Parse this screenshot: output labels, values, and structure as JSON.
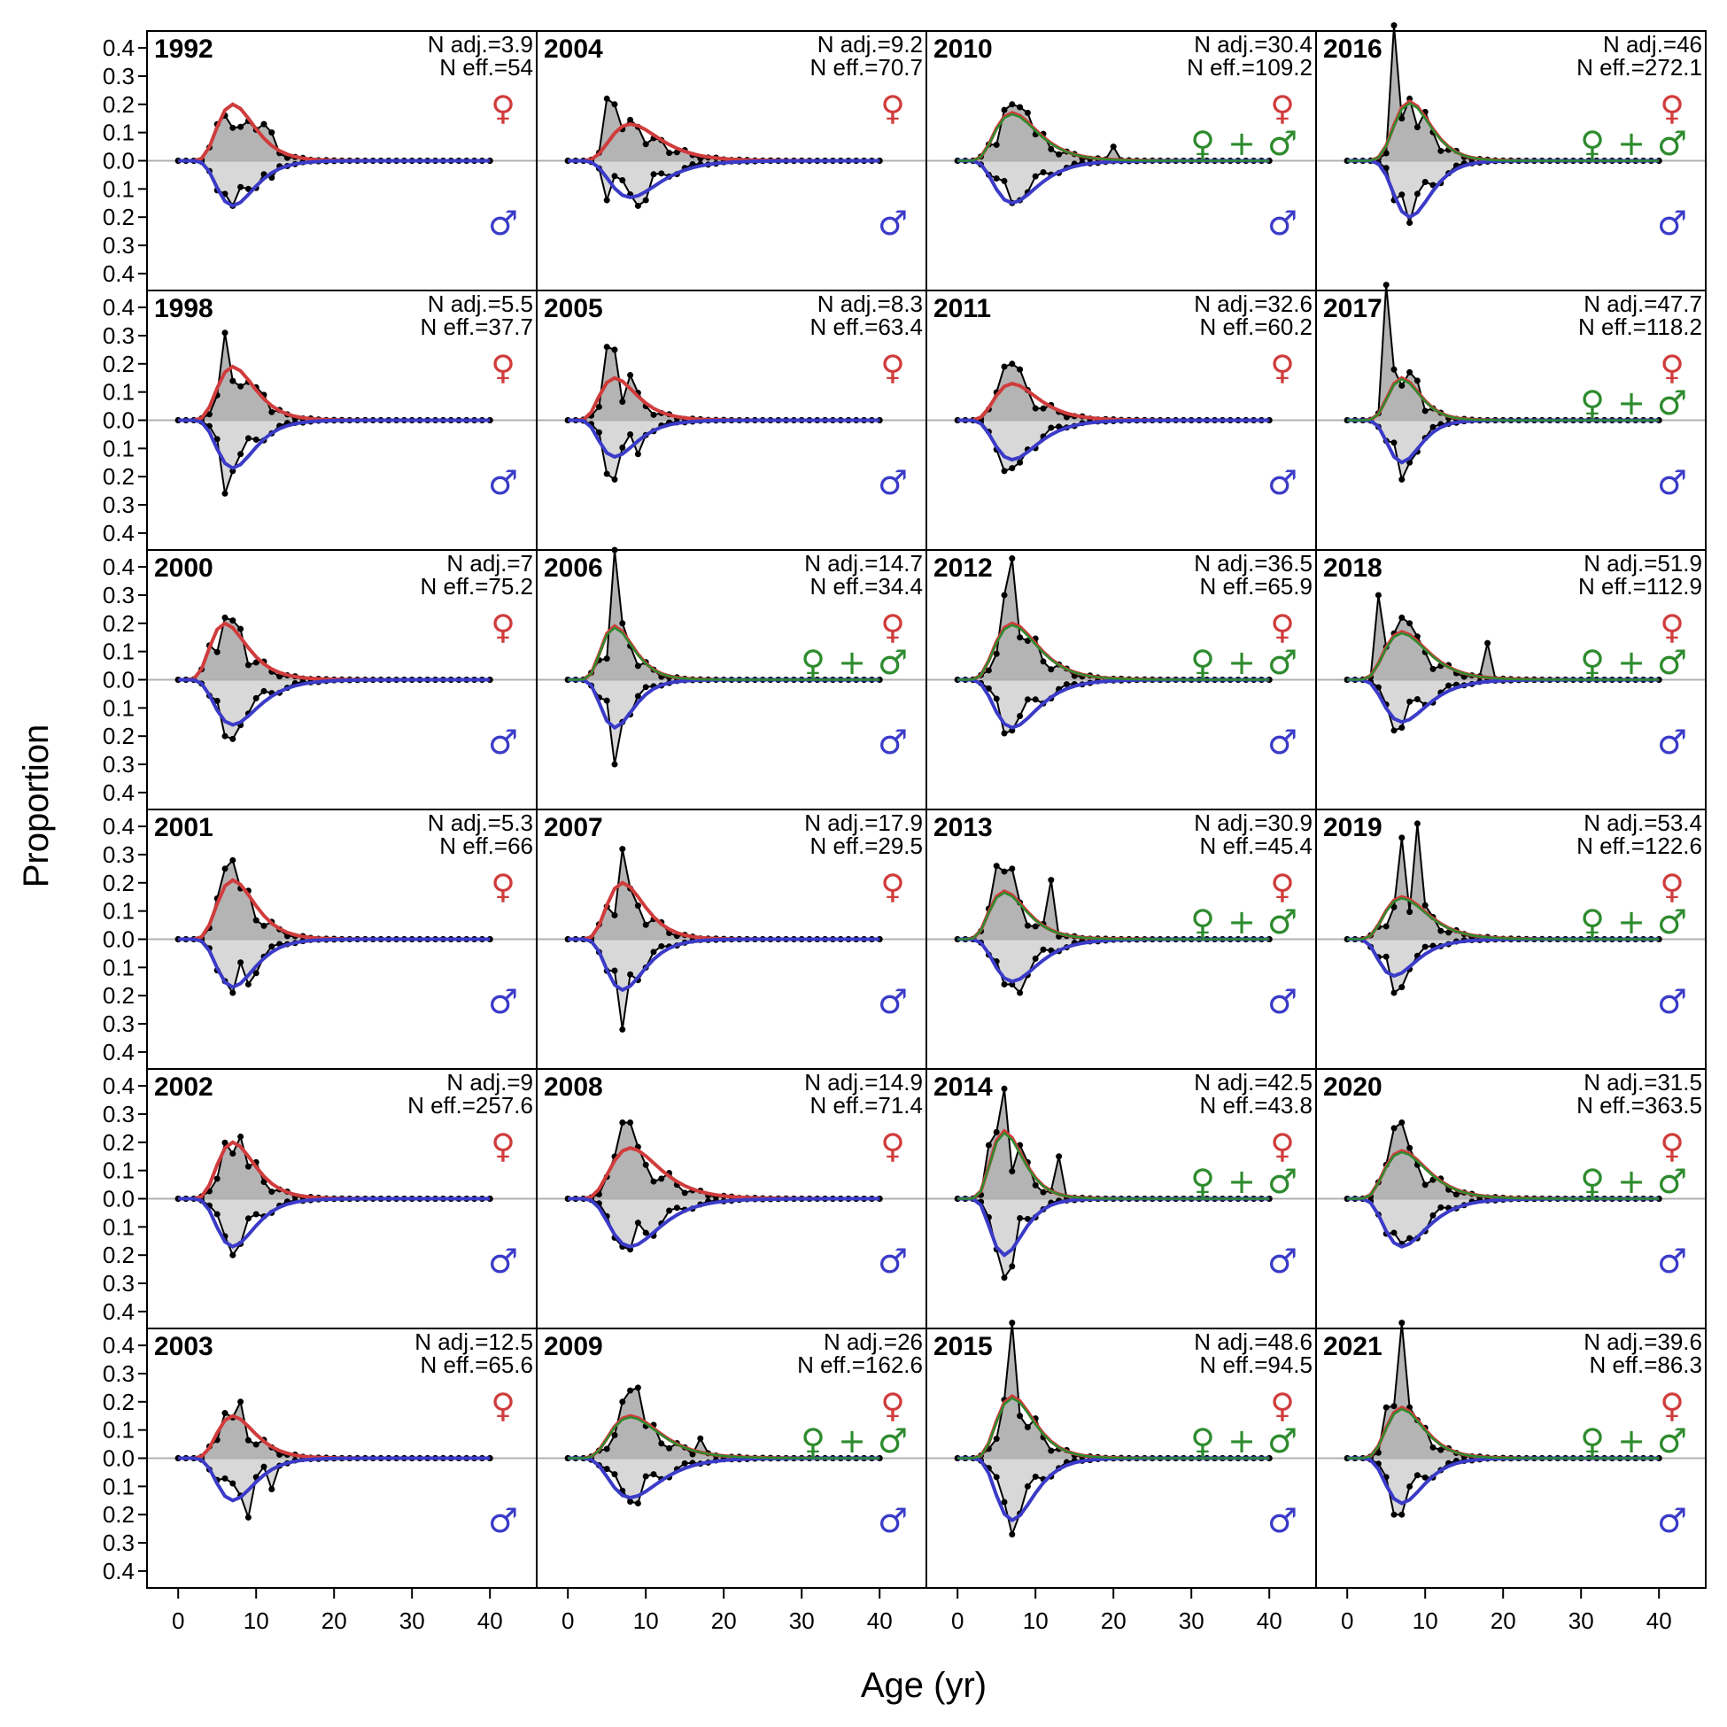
{
  "chart_data": {
    "type": "area",
    "xlabel": "Age (yr)",
    "ylabel": "Proportion",
    "xlim": [
      -4,
      46
    ],
    "ylim": [
      -0.46,
      0.46
    ],
    "x_ticks": [
      "0",
      "10",
      "20",
      "30",
      "40"
    ],
    "y_ticks": [
      "0.4",
      "0.3",
      "0.2",
      "0.1",
      "0.0",
      "0.1",
      "0.2",
      "0.3",
      "0.4"
    ],
    "symbols": {
      "female": "♀",
      "male": "♂",
      "combined_plus": "+"
    },
    "colors": {
      "female_fit": "#d03c3c",
      "male_fit": "#3b3bc8",
      "combined_fit": "#2e8b2e",
      "obs_fill_female": "#b4b4b4",
      "obs_fill_male": "#d8d8d8",
      "obs_line": "#000000",
      "zero_line": "#b0b0b0"
    },
    "layout_note_cols": 4,
    "panels": [
      {
        "year": "1992",
        "n_adj": "N adj.=3.9",
        "n_eff": "N eff.=54",
        "f_mode": 7,
        "f_peak": 0.2,
        "m_mode": 7,
        "m_peak": 0.16,
        "spread": 3.5,
        "spikes": [
          [
            6,
            0.16
          ],
          [
            8,
            0.12
          ],
          [
            10,
            0.11
          ],
          [
            11,
            0.13
          ],
          [
            12,
            0.1
          ]
        ],
        "mspikes": [
          [
            7,
            0.16
          ],
          [
            9,
            0.1
          ],
          [
            12,
            0.06
          ]
        ],
        "combined": false
      },
      {
        "year": "2004",
        "n_adj": "N adj.=9.2",
        "n_eff": "N eff.=70.7",
        "f_mode": 8,
        "f_peak": 0.13,
        "m_mode": 8,
        "m_peak": 0.13,
        "spread": 4,
        "spikes": [
          [
            5,
            0.22
          ],
          [
            6,
            0.2
          ],
          [
            9,
            0.12
          ],
          [
            11,
            0.08
          ]
        ],
        "mspikes": [
          [
            5,
            0.14
          ],
          [
            9,
            0.16
          ],
          [
            10,
            0.14
          ]
        ],
        "combined": false
      },
      {
        "year": "2010",
        "n_adj": "N adj.=30.4",
        "n_eff": "N eff.=109.2",
        "f_mode": 7,
        "f_peak": 0.17,
        "m_mode": 7,
        "m_peak": 0.15,
        "spread": 4,
        "spikes": [
          [
            6,
            0.18
          ],
          [
            7,
            0.2
          ],
          [
            8,
            0.19
          ],
          [
            9,
            0.17
          ],
          [
            20,
            0.05
          ]
        ],
        "mspikes": [
          [
            7,
            0.15
          ],
          [
            8,
            0.14
          ]
        ],
        "combined": true
      },
      {
        "year": "2016",
        "n_adj": "N adj.=46",
        "n_eff": "N eff.=272.1",
        "f_mode": 8,
        "f_peak": 0.21,
        "m_mode": 8,
        "m_peak": 0.2,
        "spread": 3,
        "spikes": [
          [
            6,
            0.48
          ],
          [
            7,
            0.15
          ],
          [
            8,
            0.22
          ]
        ],
        "mspikes": [
          [
            6,
            0.14
          ],
          [
            7,
            0.12
          ],
          [
            8,
            0.22
          ]
        ],
        "combined": true
      },
      {
        "year": "1998",
        "n_adj": "N adj.=5.5",
        "n_eff": "N eff.=37.7",
        "f_mode": 7,
        "f_peak": 0.19,
        "m_mode": 7,
        "m_peak": 0.17,
        "spread": 3.5,
        "spikes": [
          [
            6,
            0.31
          ],
          [
            8,
            0.12
          ],
          [
            11,
            0.09
          ]
        ],
        "mspikes": [
          [
            6,
            0.26
          ],
          [
            8,
            0.12
          ]
        ],
        "combined": false
      },
      {
        "year": "2005",
        "n_adj": "N adj.=8.3",
        "n_eff": "N eff.=63.4",
        "f_mode": 6,
        "f_peak": 0.15,
        "m_mode": 6,
        "m_peak": 0.13,
        "spread": 4,
        "spikes": [
          [
            5,
            0.26
          ],
          [
            6,
            0.25
          ],
          [
            8,
            0.16
          ],
          [
            10,
            0.05
          ]
        ],
        "mspikes": [
          [
            5,
            0.19
          ],
          [
            6,
            0.21
          ],
          [
            9,
            0.12
          ]
        ],
        "combined": false
      },
      {
        "year": "2011",
        "n_adj": "N adj.=32.6",
        "n_eff": "N eff.=60.2",
        "f_mode": 7,
        "f_peak": 0.13,
        "m_mode": 7,
        "m_peak": 0.14,
        "spread": 4,
        "spikes": [
          [
            6,
            0.19
          ],
          [
            7,
            0.2
          ],
          [
            8,
            0.18
          ]
        ],
        "mspikes": [
          [
            6,
            0.18
          ],
          [
            7,
            0.17
          ],
          [
            8,
            0.15
          ]
        ],
        "combined": false
      },
      {
        "year": "2017",
        "n_adj": "N adj.=47.7",
        "n_eff": "N eff.=118.2",
        "f_mode": 7,
        "f_peak": 0.15,
        "m_mode": 7,
        "m_peak": 0.15,
        "spread": 3,
        "spikes": [
          [
            5,
            0.48
          ],
          [
            6,
            0.18
          ],
          [
            8,
            0.17
          ],
          [
            9,
            0.14
          ]
        ],
        "mspikes": [
          [
            7,
            0.21
          ],
          [
            8,
            0.15
          ]
        ],
        "combined": true
      },
      {
        "year": "2000",
        "n_adj": "N adj.=7",
        "n_eff": "N eff.=75.2",
        "f_mode": 6,
        "f_peak": 0.2,
        "m_mode": 7,
        "m_peak": 0.16,
        "spread": 4,
        "spikes": [
          [
            6,
            0.22
          ],
          [
            7,
            0.21
          ],
          [
            8,
            0.18
          ]
        ],
        "mspikes": [
          [
            6,
            0.2
          ],
          [
            7,
            0.21
          ],
          [
            9,
            0.12
          ]
        ],
        "combined": false
      },
      {
        "year": "2006",
        "n_adj": "N adj.=14.7",
        "n_eff": "N eff.=34.4",
        "f_mode": 6,
        "f_peak": 0.19,
        "m_mode": 6,
        "m_peak": 0.17,
        "spread": 3.5,
        "spikes": [
          [
            6,
            0.46
          ],
          [
            7,
            0.2
          ],
          [
            8,
            0.12
          ]
        ],
        "mspikes": [
          [
            6,
            0.3
          ],
          [
            7,
            0.15
          ]
        ],
        "combined": true
      },
      {
        "year": "2012",
        "n_adj": "N adj.=36.5",
        "n_eff": "N eff.=65.9",
        "f_mode": 7,
        "f_peak": 0.2,
        "m_mode": 7,
        "m_peak": 0.17,
        "spread": 4,
        "spikes": [
          [
            6,
            0.3
          ],
          [
            7,
            0.43
          ],
          [
            8,
            0.15
          ]
        ],
        "mspikes": [
          [
            6,
            0.19
          ],
          [
            7,
            0.18
          ]
        ],
        "combined": true
      },
      {
        "year": "2018",
        "n_adj": "N adj.=51.9",
        "n_eff": "N eff.=112.9",
        "f_mode": 7,
        "f_peak": 0.17,
        "m_mode": 7,
        "m_peak": 0.15,
        "spread": 4,
        "spikes": [
          [
            4,
            0.3
          ],
          [
            7,
            0.22
          ],
          [
            8,
            0.2
          ],
          [
            18,
            0.13
          ]
        ],
        "mspikes": [
          [
            6,
            0.18
          ],
          [
            7,
            0.17
          ]
        ],
        "combined": true
      },
      {
        "year": "2001",
        "n_adj": "N adj.=5.3",
        "n_eff": "N eff.=66",
        "f_mode": 7,
        "f_peak": 0.21,
        "m_mode": 7,
        "m_peak": 0.17,
        "spread": 3.5,
        "spikes": [
          [
            6,
            0.25
          ],
          [
            7,
            0.28
          ],
          [
            8,
            0.18
          ]
        ],
        "mspikes": [
          [
            7,
            0.19
          ],
          [
            9,
            0.16
          ],
          [
            10,
            0.12
          ]
        ],
        "combined": false
      },
      {
        "year": "2007",
        "n_adj": "N adj.=17.9",
        "n_eff": "N eff.=29.5",
        "f_mode": 7,
        "f_peak": 0.2,
        "m_mode": 7,
        "m_peak": 0.18,
        "spread": 3.5,
        "spikes": [
          [
            7,
            0.32
          ],
          [
            8,
            0.18
          ]
        ],
        "mspikes": [
          [
            7,
            0.32
          ]
        ],
        "combined": false
      },
      {
        "year": "2013",
        "n_adj": "N adj.=30.9",
        "n_eff": "N eff.=45.4",
        "f_mode": 6,
        "f_peak": 0.17,
        "m_mode": 7,
        "m_peak": 0.15,
        "spread": 4,
        "spikes": [
          [
            5,
            0.26
          ],
          [
            6,
            0.24
          ],
          [
            7,
            0.25
          ],
          [
            12,
            0.21
          ]
        ],
        "mspikes": [
          [
            6,
            0.16
          ],
          [
            7,
            0.16
          ],
          [
            8,
            0.19
          ]
        ],
        "combined": true
      },
      {
        "year": "2019",
        "n_adj": "N adj.=53.4",
        "n_eff": "N eff.=122.6",
        "f_mode": 7,
        "f_peak": 0.15,
        "m_mode": 6,
        "m_peak": 0.13,
        "spread": 4,
        "spikes": [
          [
            7,
            0.36
          ],
          [
            9,
            0.41
          ],
          [
            10,
            0.12
          ]
        ],
        "mspikes": [
          [
            6,
            0.19
          ],
          [
            7,
            0.17
          ]
        ],
        "combined": true
      },
      {
        "year": "2002",
        "n_adj": "N adj.=9",
        "n_eff": "N eff.=257.6",
        "f_mode": 7,
        "f_peak": 0.2,
        "m_mode": 7,
        "m_peak": 0.17,
        "spread": 3.5,
        "spikes": [
          [
            7,
            0.16
          ],
          [
            8,
            0.22
          ]
        ],
        "mspikes": [
          [
            7,
            0.2
          ],
          [
            8,
            0.16
          ]
        ],
        "combined": false
      },
      {
        "year": "2008",
        "n_adj": "N adj.=14.9",
        "n_eff": "N eff.=71.4",
        "f_mode": 8,
        "f_peak": 0.18,
        "m_mode": 8,
        "m_peak": 0.17,
        "spread": 4,
        "spikes": [
          [
            7,
            0.27
          ],
          [
            8,
            0.27
          ],
          [
            10,
            0.12
          ]
        ],
        "mspikes": [
          [
            7,
            0.17
          ],
          [
            8,
            0.18
          ]
        ],
        "combined": false
      },
      {
        "year": "2014",
        "n_adj": "N adj.=42.5",
        "n_eff": "N eff.=43.8",
        "f_mode": 6,
        "f_peak": 0.24,
        "m_mode": 6,
        "m_peak": 0.2,
        "spread": 3.5,
        "spikes": [
          [
            4,
            0.19
          ],
          [
            6,
            0.39
          ],
          [
            8,
            0.19
          ],
          [
            13,
            0.15
          ]
        ],
        "mspikes": [
          [
            6,
            0.28
          ],
          [
            7,
            0.24
          ]
        ],
        "combined": true
      },
      {
        "year": "2020",
        "n_adj": "N adj.=31.5",
        "n_eff": "N eff.=363.5",
        "f_mode": 7,
        "f_peak": 0.17,
        "m_mode": 7,
        "m_peak": 0.17,
        "spread": 4,
        "spikes": [
          [
            6,
            0.25
          ],
          [
            7,
            0.27
          ],
          [
            9,
            0.12
          ]
        ],
        "mspikes": [
          [
            7,
            0.16
          ],
          [
            8,
            0.14
          ]
        ],
        "combined": true
      },
      {
        "year": "2003",
        "n_adj": "N adj.=12.5",
        "n_eff": "N eff.=65.6",
        "f_mode": 7,
        "f_peak": 0.15,
        "m_mode": 7,
        "m_peak": 0.15,
        "spread": 3.5,
        "spikes": [
          [
            6,
            0.16
          ],
          [
            8,
            0.2
          ]
        ],
        "mspikes": [
          [
            9,
            0.21
          ],
          [
            12,
            0.11
          ]
        ],
        "combined": false
      },
      {
        "year": "2009",
        "n_adj": "N adj.=26",
        "n_eff": "N eff.=162.6",
        "f_mode": 8,
        "f_peak": 0.15,
        "m_mode": 8,
        "m_peak": 0.14,
        "spread": 4,
        "spikes": [
          [
            7,
            0.2
          ],
          [
            8,
            0.24
          ],
          [
            9,
            0.25
          ],
          [
            17,
            0.07
          ]
        ],
        "mspikes": [
          [
            9,
            0.16
          ]
        ],
        "combined": true
      },
      {
        "year": "2015",
        "n_adj": "N adj.=48.6",
        "n_eff": "N eff.=94.5",
        "f_mode": 7,
        "f_peak": 0.22,
        "m_mode": 7,
        "m_peak": 0.22,
        "spread": 3.5,
        "spikes": [
          [
            7,
            0.48
          ],
          [
            8,
            0.15
          ]
        ],
        "mspikes": [
          [
            7,
            0.27
          ]
        ],
        "combined": true
      },
      {
        "year": "2021",
        "n_adj": "N adj.=39.6",
        "n_eff": "N eff.=86.3",
        "f_mode": 7,
        "f_peak": 0.18,
        "m_mode": 7,
        "m_peak": 0.16,
        "spread": 3.5,
        "spikes": [
          [
            5,
            0.18
          ],
          [
            7,
            0.48
          ],
          [
            8,
            0.18
          ]
        ],
        "mspikes": [
          [
            6,
            0.2
          ],
          [
            7,
            0.2
          ]
        ],
        "combined": true
      }
    ]
  }
}
